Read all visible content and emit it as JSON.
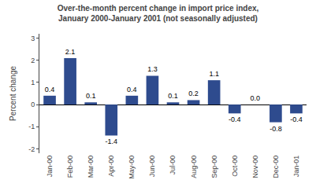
{
  "chart_data": {
    "type": "bar",
    "title": "Over-the-month percent change in import price index,\nJanuary 2000-January 2001 (not seasonally adjusted)",
    "ylabel": "Percent change",
    "categories": [
      "Jan-00",
      "Feb-00",
      "Mar-00",
      "Apr-00",
      "May-00",
      "Jun-00",
      "Jul-00",
      "Aug-00",
      "Sep-00",
      "Oct-00",
      "Nov-00",
      "Dec-00",
      "Jan-01"
    ],
    "values": [
      0.4,
      2.1,
      0.1,
      -1.4,
      0.4,
      1.3,
      0.1,
      0.2,
      1.1,
      -0.4,
      0.0,
      -0.8,
      -0.4
    ],
    "value_labels": [
      "0.4",
      "2.1",
      "0.1",
      "-1.4",
      "0.4",
      "1.3",
      "0.1",
      "0.2",
      "1.1",
      "-0.4",
      "0.0",
      "-0.8",
      "-0.4"
    ],
    "color": "#2E4B8E",
    "ylim": [
      -2.2,
      3.2
    ],
    "yticks": [
      -2,
      -1,
      0,
      1,
      2,
      3
    ],
    "grid": false,
    "data_labels": true
  }
}
